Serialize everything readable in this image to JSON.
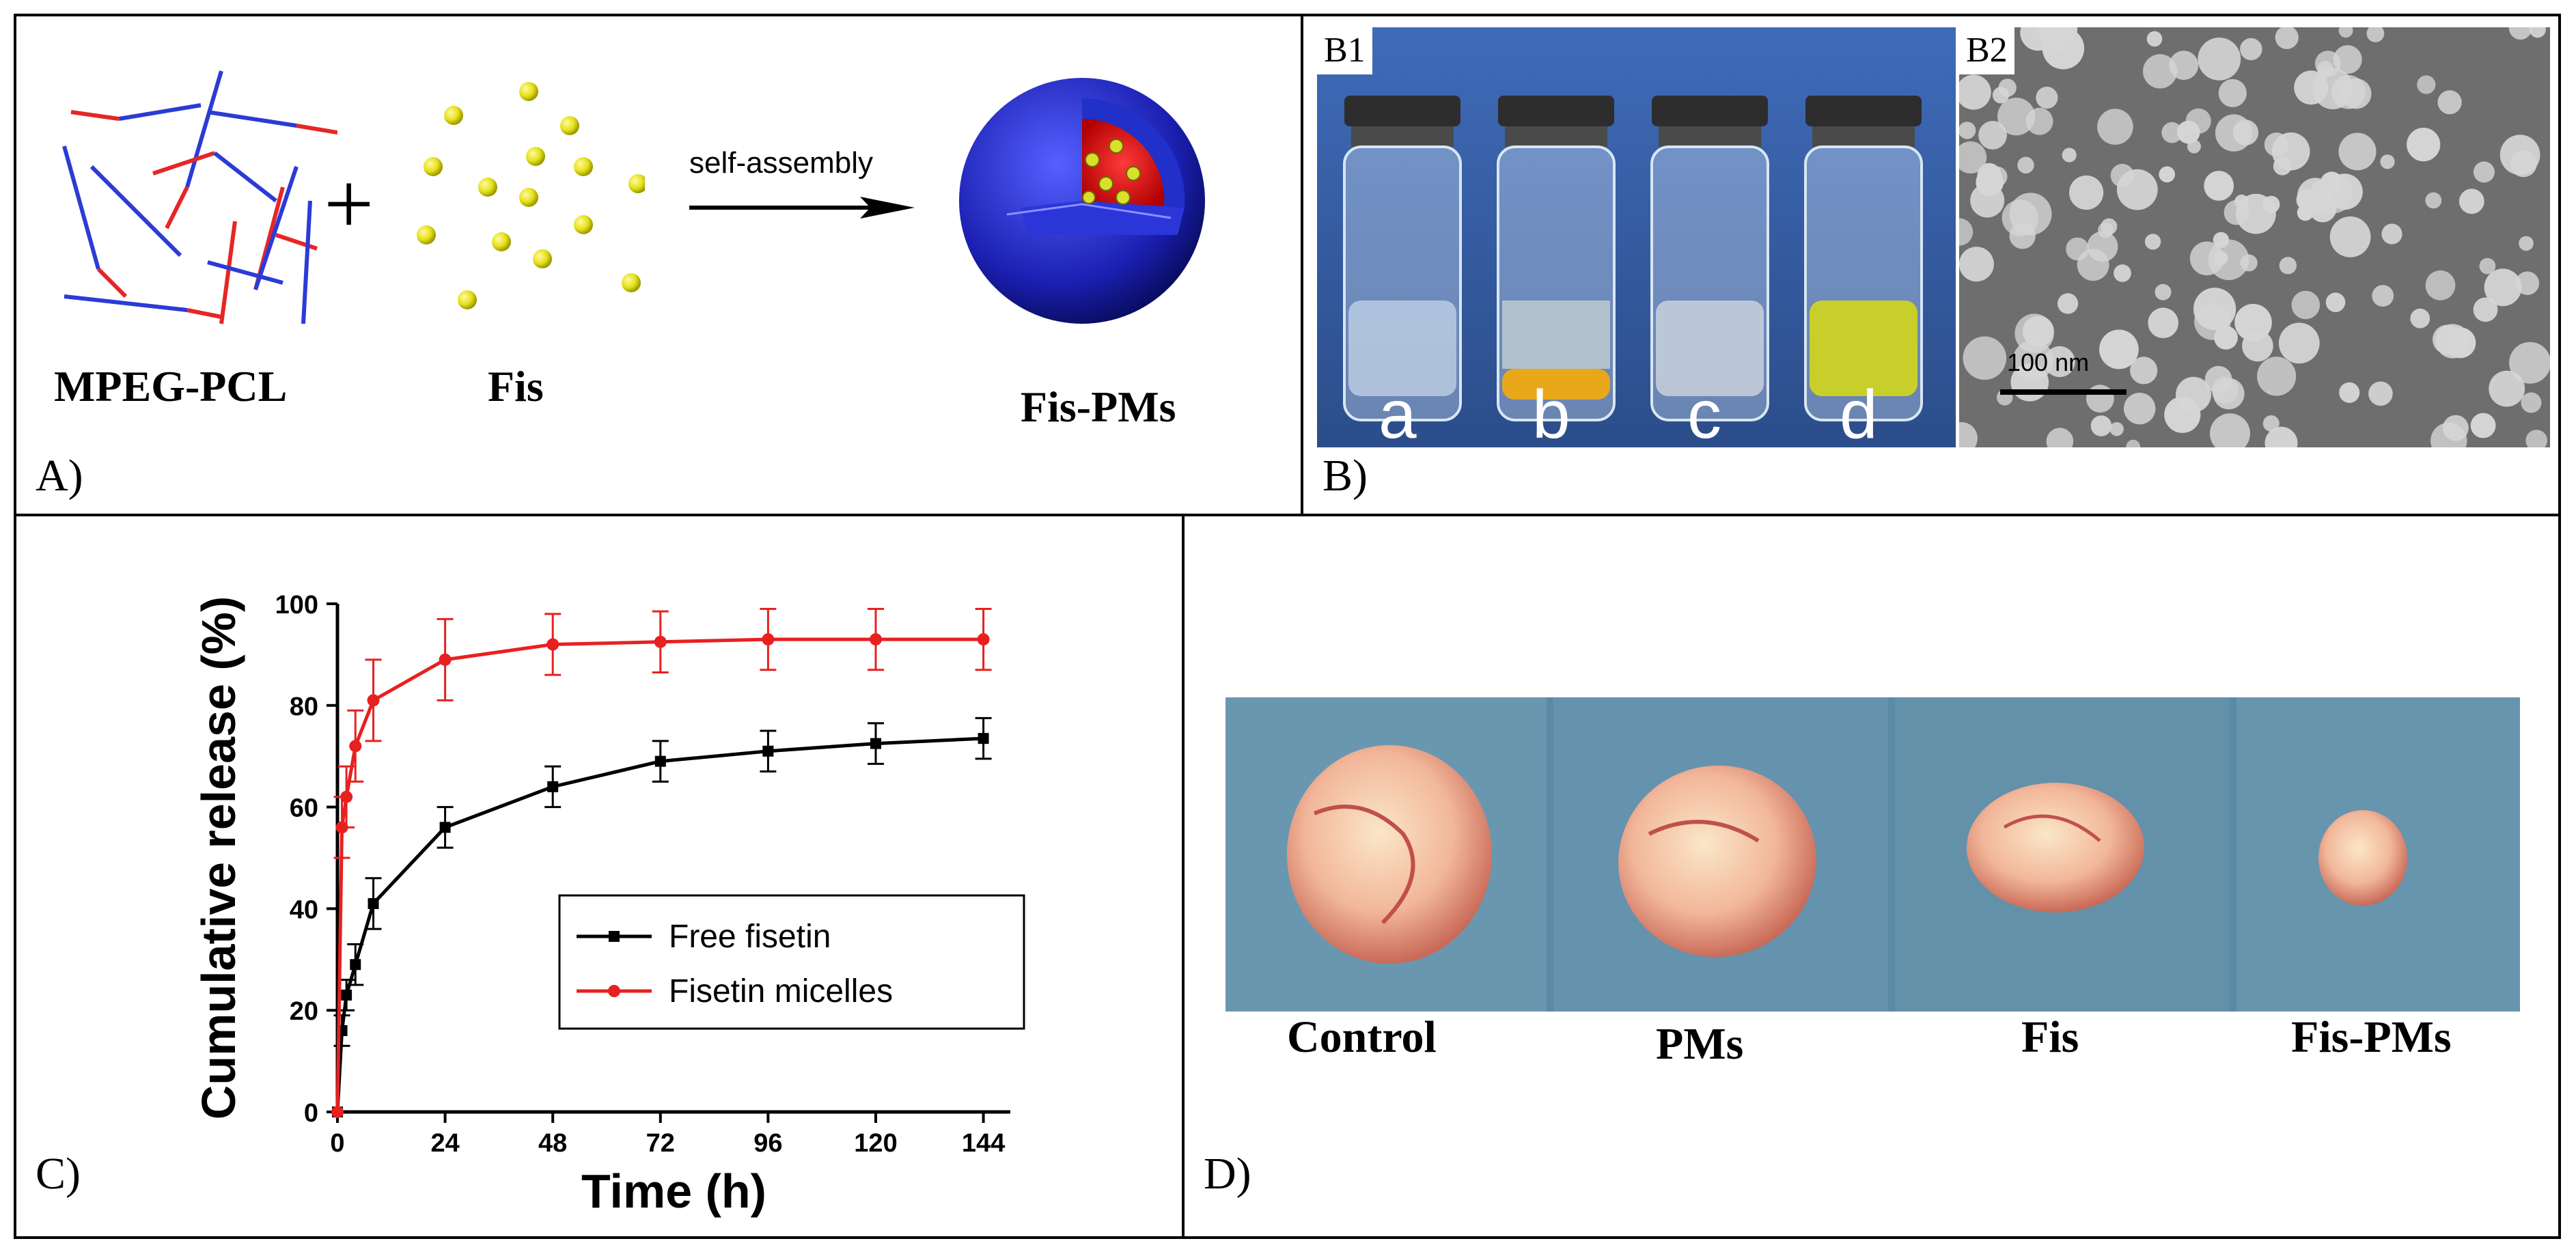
{
  "panel_a": {
    "label": "A)",
    "left_caption": "MPEG-PCL",
    "mid_caption": "Fis",
    "arrow_caption": "self-assembly",
    "right_caption": "Fis-PMs",
    "plus": "+"
  },
  "panel_b": {
    "label": "B)",
    "b1_label": "B1",
    "b2_label": "B2",
    "vial_letters": [
      "a",
      "b",
      "c",
      "d"
    ],
    "scale_bar": "100 nm",
    "colors": {
      "background": "#2b4d8a",
      "fisetin_yellow": "#e8a81a",
      "micelle_green": "#c9cf2a"
    }
  },
  "panel_c": {
    "label": "C)",
    "chart_data": {
      "type": "line",
      "xlabel": "Time (h)",
      "ylabel": "Cumulative release (%)",
      "xlim": [
        0,
        150
      ],
      "ylim": [
        0,
        100
      ],
      "xticks": [
        0,
        24,
        48,
        72,
        96,
        120,
        144
      ],
      "yticks": [
        0,
        20,
        40,
        60,
        80,
        100
      ],
      "legend_position": "center-right",
      "series": [
        {
          "name": "Free fisetin",
          "color": "#000000",
          "x": [
            0,
            1,
            2,
            4,
            8,
            24,
            48,
            72,
            96,
            120,
            144
          ],
          "y": [
            0,
            16,
            23,
            29,
            41,
            56,
            64,
            69,
            71,
            72.5,
            73.5
          ],
          "err": [
            0,
            3,
            3,
            4,
            5,
            4,
            4,
            4,
            4,
            4,
            4
          ]
        },
        {
          "name": "Fisetin micelles",
          "color": "#e82020",
          "x": [
            0,
            1,
            2,
            4,
            8,
            24,
            48,
            72,
            96,
            120,
            144
          ],
          "y": [
            0,
            56,
            62,
            72,
            81,
            89,
            92,
            92.5,
            93,
            93,
            93
          ],
          "err": [
            0,
            6,
            6,
            7,
            8,
            8,
            6,
            6,
            6,
            6,
            6
          ]
        }
      ]
    }
  },
  "panel_d": {
    "label": "D)",
    "groups": [
      "Control",
      "PMs",
      "Fis",
      "Fis-PMs"
    ]
  }
}
